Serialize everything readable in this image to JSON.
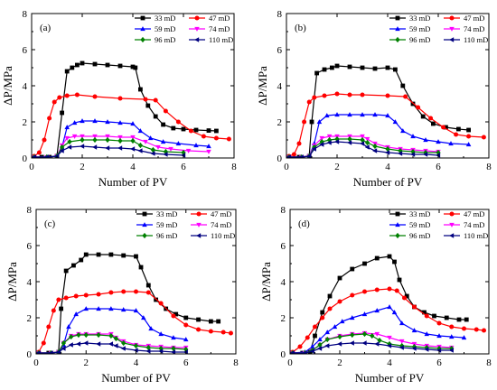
{
  "figure": {
    "colors": {
      "33 mD": "#000000",
      "47 mD": "#ff0000",
      "59 mD": "#0000ff",
      "74 mD": "#ff00ff",
      "96 mD": "#008000",
      "110 mD": "#000080"
    },
    "markers": {
      "33 mD": "square",
      "47 mD": "circle",
      "59 mD": "triangle-up",
      "74 mD": "triangle-down",
      "96 mD": "diamond",
      "110 mD": "triangle-left"
    }
  },
  "chart_data": [
    {
      "type": "line",
      "panel_label": "(a)",
      "xlabel": "Number of PV",
      "ylabel": "ΔP/MPa",
      "xlim": [
        0,
        8
      ],
      "ylim": [
        0,
        8
      ],
      "xticks": [
        "0",
        "2",
        "4",
        "6",
        "8"
      ],
      "yticks": [
        "0",
        "2",
        "4",
        "6",
        "8"
      ],
      "legend_placement": "top-right",
      "series": [
        {
          "name": "33 mD",
          "x": [
            0.1,
            0.4,
            0.7,
            1.0,
            1.2,
            1.4,
            1.6,
            1.8,
            2.0,
            2.5,
            3.0,
            3.5,
            4.0,
            4.1,
            4.3,
            4.6,
            4.9,
            5.2,
            5.6,
            6.0,
            6.5,
            7.0,
            7.3
          ],
          "y": [
            0.05,
            0.05,
            0.05,
            0.1,
            2.5,
            4.8,
            5.0,
            5.15,
            5.25,
            5.2,
            5.15,
            5.1,
            5.05,
            5.0,
            3.8,
            2.9,
            2.3,
            1.85,
            1.65,
            1.6,
            1.55,
            1.52,
            1.5
          ]
        },
        {
          "name": "47 mD",
          "x": [
            0.1,
            0.3,
            0.5,
            0.7,
            0.9,
            1.1,
            1.4,
            1.8,
            2.5,
            3.5,
            4.5,
            4.9,
            5.3,
            5.8,
            6.3,
            6.8,
            7.3,
            7.8
          ],
          "y": [
            0.1,
            0.3,
            1.0,
            2.2,
            3.1,
            3.35,
            3.45,
            3.5,
            3.4,
            3.3,
            3.25,
            3.2,
            2.6,
            2.0,
            1.5,
            1.2,
            1.1,
            1.05
          ]
        },
        {
          "name": "59 mD",
          "x": [
            0.1,
            0.6,
            1.0,
            1.2,
            1.4,
            1.7,
            2.0,
            2.5,
            3.0,
            3.5,
            4.0,
            4.3,
            4.7,
            5.2,
            5.8,
            6.5,
            7.0
          ],
          "y": [
            0.05,
            0.05,
            0.1,
            0.6,
            1.7,
            1.95,
            2.05,
            2.05,
            2.0,
            1.95,
            1.9,
            1.5,
            1.1,
            0.9,
            0.8,
            0.7,
            0.65
          ]
        },
        {
          "name": "74 mD",
          "x": [
            0.1,
            0.6,
            1.0,
            1.2,
            1.4,
            1.7,
            2.0,
            2.5,
            3.0,
            3.5,
            4.0,
            4.5,
            5.0,
            5.5,
            6.2,
            7.0
          ],
          "y": [
            0.05,
            0.05,
            0.1,
            0.7,
            1.1,
            1.2,
            1.2,
            1.2,
            1.2,
            1.15,
            1.15,
            0.9,
            0.6,
            0.5,
            0.4,
            0.35
          ]
        },
        {
          "name": "96 mD",
          "x": [
            0.1,
            0.6,
            1.0,
            1.2,
            1.5,
            2.0,
            2.5,
            3.0,
            3.5,
            4.0,
            4.3,
            4.8,
            5.3,
            6.0
          ],
          "y": [
            0.05,
            0.05,
            0.1,
            0.6,
            0.9,
            1.0,
            1.0,
            1.0,
            0.95,
            0.95,
            0.7,
            0.45,
            0.35,
            0.3
          ]
        },
        {
          "name": "110 mD",
          "x": [
            0.1,
            0.6,
            1.0,
            1.2,
            1.5,
            2.0,
            2.5,
            3.0,
            3.5,
            4.0,
            4.3,
            4.8,
            5.3,
            6.0
          ],
          "y": [
            0.05,
            0.05,
            0.1,
            0.4,
            0.6,
            0.65,
            0.6,
            0.55,
            0.55,
            0.5,
            0.4,
            0.25,
            0.2,
            0.15
          ]
        }
      ]
    },
    {
      "type": "line",
      "panel_label": "(b)",
      "xlabel": "Number of PV",
      "ylabel": "ΔP/MPa",
      "xlim": [
        0,
        8
      ],
      "ylim": [
        0,
        8
      ],
      "xticks": [
        "0",
        "2",
        "4",
        "6",
        "8"
      ],
      "yticks": [
        "0",
        "2",
        "4",
        "6",
        "8"
      ],
      "legend_placement": "top-right",
      "series": [
        {
          "name": "33 mD",
          "x": [
            0.1,
            0.5,
            0.9,
            1.0,
            1.2,
            1.5,
            1.8,
            2.0,
            2.5,
            3.0,
            3.5,
            4.0,
            4.3,
            4.6,
            5.0,
            5.4,
            5.8,
            6.3,
            6.8,
            7.2
          ],
          "y": [
            0.05,
            0.05,
            0.1,
            2.0,
            4.7,
            4.9,
            5.0,
            5.1,
            5.05,
            5.0,
            4.95,
            5.0,
            4.9,
            4.0,
            3.0,
            2.3,
            1.9,
            1.7,
            1.6,
            1.55
          ]
        },
        {
          "name": "47 mD",
          "x": [
            0.1,
            0.3,
            0.5,
            0.7,
            0.9,
            1.1,
            1.5,
            2.0,
            2.5,
            3.0,
            4.0,
            4.7,
            5.2,
            5.7,
            6.2,
            6.7,
            7.2,
            7.8
          ],
          "y": [
            0.1,
            0.2,
            0.8,
            2.0,
            3.1,
            3.35,
            3.45,
            3.55,
            3.5,
            3.5,
            3.45,
            3.4,
            2.8,
            2.2,
            1.7,
            1.3,
            1.2,
            1.15
          ]
        },
        {
          "name": "59 mD",
          "x": [
            0.1,
            0.6,
            0.9,
            1.1,
            1.3,
            1.6,
            2.0,
            2.5,
            3.0,
            3.5,
            4.0,
            4.3,
            4.6,
            5.0,
            5.5,
            6.0,
            6.5,
            7.2
          ],
          "y": [
            0.05,
            0.05,
            0.1,
            0.8,
            2.0,
            2.35,
            2.4,
            2.4,
            2.4,
            2.4,
            2.35,
            2.0,
            1.5,
            1.2,
            1.0,
            0.9,
            0.8,
            0.75
          ]
        },
        {
          "name": "74 mD",
          "x": [
            0.1,
            0.6,
            0.9,
            1.1,
            1.4,
            1.7,
            2.0,
            2.5,
            3.0,
            3.2,
            3.5,
            4.0,
            4.5,
            5.0,
            5.5,
            6.0
          ],
          "y": [
            0.05,
            0.05,
            0.1,
            0.7,
            1.1,
            1.2,
            1.2,
            1.2,
            1.2,
            1.05,
            0.8,
            0.6,
            0.5,
            0.45,
            0.4,
            0.35
          ]
        },
        {
          "name": "96 mD",
          "x": [
            0.1,
            0.6,
            0.9,
            1.1,
            1.4,
            1.7,
            2.0,
            2.5,
            3.0,
            3.2,
            3.5,
            4.0,
            4.5,
            5.0,
            5.5,
            6.0
          ],
          "y": [
            0.05,
            0.05,
            0.1,
            0.6,
            0.9,
            1.0,
            1.05,
            1.05,
            1.0,
            0.85,
            0.65,
            0.5,
            0.4,
            0.35,
            0.3,
            0.3
          ]
        },
        {
          "name": "110 mD",
          "x": [
            0.1,
            0.6,
            0.9,
            1.1,
            1.4,
            1.7,
            2.0,
            2.5,
            3.0,
            3.2,
            3.5,
            4.0,
            4.5,
            5.0,
            5.5,
            6.0
          ],
          "y": [
            0.05,
            0.05,
            0.1,
            0.5,
            0.75,
            0.85,
            0.9,
            0.85,
            0.8,
            0.6,
            0.4,
            0.3,
            0.25,
            0.2,
            0.2,
            0.15
          ]
        }
      ]
    },
    {
      "type": "line",
      "panel_label": "(c)",
      "xlabel": "Number of PV",
      "ylabel": "ΔP/MPa",
      "xlim": [
        0,
        8
      ],
      "ylim": [
        0,
        8
      ],
      "xticks": [
        "0",
        "2",
        "4",
        "6",
        "8"
      ],
      "yticks": [
        "0",
        "2",
        "4",
        "6",
        "8"
      ],
      "legend_placement": "top-right",
      "series": [
        {
          "name": "33 mD",
          "x": [
            0.1,
            0.5,
            0.9,
            1.0,
            1.2,
            1.5,
            1.8,
            2.0,
            2.5,
            3.0,
            3.5,
            4.0,
            4.2,
            4.5,
            4.8,
            5.2,
            5.6,
            6.0,
            6.5,
            7.0,
            7.3
          ],
          "y": [
            0.05,
            0.05,
            0.1,
            2.5,
            4.6,
            4.9,
            5.2,
            5.5,
            5.5,
            5.5,
            5.45,
            5.4,
            4.8,
            3.8,
            3.0,
            2.5,
            2.2,
            2.0,
            1.9,
            1.8,
            1.8
          ]
        },
        {
          "name": "47 mD",
          "x": [
            0.1,
            0.3,
            0.5,
            0.7,
            0.9,
            1.2,
            1.6,
            2.0,
            2.5,
            3.0,
            3.5,
            4.0,
            4.5,
            5.0,
            5.5,
            6.0,
            6.5,
            7.0,
            7.5,
            7.8
          ],
          "y": [
            0.1,
            0.6,
            1.5,
            2.4,
            3.0,
            3.1,
            3.2,
            3.25,
            3.3,
            3.4,
            3.45,
            3.45,
            3.4,
            2.8,
            2.1,
            1.6,
            1.35,
            1.25,
            1.2,
            1.15
          ]
        },
        {
          "name": "59 mD",
          "x": [
            0.1,
            0.6,
            0.9,
            1.1,
            1.3,
            1.6,
            2.0,
            2.5,
            3.0,
            3.5,
            4.0,
            4.3,
            4.6,
            5.0,
            5.5,
            6.0
          ],
          "y": [
            0.05,
            0.05,
            0.1,
            0.5,
            1.5,
            2.2,
            2.5,
            2.5,
            2.5,
            2.45,
            2.4,
            2.0,
            1.4,
            1.1,
            0.9,
            0.8
          ]
        },
        {
          "name": "74 mD",
          "x": [
            0.1,
            0.6,
            0.9,
            1.1,
            1.4,
            1.7,
            2.0,
            2.5,
            3.0,
            3.2,
            3.5,
            4.0,
            4.5,
            5.0,
            5.5,
            6.0
          ],
          "y": [
            0.05,
            0.05,
            0.1,
            0.6,
            1.0,
            1.1,
            1.1,
            1.1,
            1.1,
            0.9,
            0.7,
            0.5,
            0.45,
            0.4,
            0.35,
            0.35
          ]
        },
        {
          "name": "96 mD",
          "x": [
            0.1,
            0.6,
            0.9,
            1.1,
            1.4,
            1.7,
            2.0,
            2.5,
            3.0,
            3.2,
            3.5,
            4.0,
            4.5,
            5.0,
            5.5,
            6.0
          ],
          "y": [
            0.05,
            0.05,
            0.1,
            0.6,
            0.95,
            1.05,
            1.05,
            1.05,
            1.0,
            0.85,
            0.6,
            0.45,
            0.35,
            0.3,
            0.3,
            0.25
          ]
        },
        {
          "name": "110 mD",
          "x": [
            0.1,
            0.6,
            0.9,
            1.1,
            1.4,
            1.7,
            2.0,
            2.5,
            3.0,
            3.2,
            3.5,
            4.0,
            4.5,
            5.0,
            5.5,
            6.0
          ],
          "y": [
            0.05,
            0.05,
            0.1,
            0.3,
            0.5,
            0.55,
            0.6,
            0.55,
            0.55,
            0.45,
            0.3,
            0.2,
            0.15,
            0.15,
            0.1,
            0.1
          ]
        }
      ]
    },
    {
      "type": "line",
      "panel_label": "(d)",
      "xlabel": "Number of PV",
      "ylabel": "ΔP/MPa",
      "xlim": [
        0,
        8
      ],
      "ylim": [
        0,
        8
      ],
      "xticks": [
        "0",
        "2",
        "4",
        "6",
        "8"
      ],
      "yticks": [
        "0",
        "2",
        "4",
        "6",
        "8"
      ],
      "legend_placement": "top-right",
      "series": [
        {
          "name": "33 mD",
          "x": [
            0.1,
            0.5,
            0.8,
            1.0,
            1.3,
            1.6,
            2.0,
            2.5,
            3.0,
            3.5,
            4.0,
            4.2,
            4.4,
            4.7,
            5.0,
            5.4,
            5.8,
            6.3,
            6.8,
            7.1
          ],
          "y": [
            0.05,
            0.05,
            0.1,
            1.0,
            2.3,
            3.2,
            4.2,
            4.7,
            5.0,
            5.3,
            5.4,
            5.1,
            4.1,
            3.2,
            2.6,
            2.3,
            2.1,
            2.0,
            1.9,
            1.9
          ]
        },
        {
          "name": "47 mD",
          "x": [
            0.1,
            0.4,
            0.7,
            1.0,
            1.3,
            1.6,
            2.0,
            2.5,
            3.0,
            3.5,
            4.0,
            4.3,
            4.6,
            5.0,
            5.5,
            6.0,
            6.5,
            7.0,
            7.5,
            7.8
          ],
          "y": [
            0.1,
            0.4,
            0.9,
            1.5,
            2.0,
            2.5,
            2.9,
            3.25,
            3.45,
            3.55,
            3.6,
            3.5,
            3.1,
            2.6,
            2.1,
            1.7,
            1.5,
            1.4,
            1.35,
            1.3
          ]
        },
        {
          "name": "59 mD",
          "x": [
            0.1,
            0.6,
            0.9,
            1.2,
            1.5,
            1.8,
            2.1,
            2.5,
            3.0,
            3.5,
            4.0,
            4.2,
            4.5,
            5.0,
            5.5,
            6.0,
            6.5,
            7.0
          ],
          "y": [
            0.05,
            0.1,
            0.4,
            0.8,
            1.2,
            1.5,
            1.8,
            2.0,
            2.2,
            2.4,
            2.6,
            2.3,
            1.7,
            1.3,
            1.1,
            1.0,
            0.95,
            0.9
          ]
        },
        {
          "name": "74 mD",
          "x": [
            0.1,
            0.6,
            0.9,
            1.2,
            1.5,
            2.0,
            2.5,
            3.0,
            3.5,
            4.0,
            4.5,
            5.0,
            5.5,
            6.0,
            6.5
          ],
          "y": [
            0.05,
            0.05,
            0.2,
            0.5,
            0.8,
            1.0,
            1.1,
            1.15,
            1.1,
            0.9,
            0.7,
            0.55,
            0.45,
            0.4,
            0.35
          ]
        },
        {
          "name": "96 mD",
          "x": [
            0.1,
            0.6,
            0.9,
            1.2,
            1.5,
            2.0,
            2.5,
            3.0,
            3.3,
            3.6,
            4.0,
            4.5,
            5.0,
            5.5,
            6.0,
            6.5
          ],
          "y": [
            0.05,
            0.05,
            0.2,
            0.5,
            0.8,
            0.95,
            1.05,
            1.1,
            1.0,
            0.75,
            0.55,
            0.45,
            0.4,
            0.35,
            0.3,
            0.3
          ]
        },
        {
          "name": "110 mD",
          "x": [
            0.1,
            0.6,
            0.9,
            1.2,
            1.5,
            2.0,
            2.5,
            3.0,
            3.5,
            4.0,
            4.5,
            5.0,
            5.5,
            6.0,
            6.5
          ],
          "y": [
            0.05,
            0.05,
            0.15,
            0.3,
            0.45,
            0.55,
            0.6,
            0.6,
            0.55,
            0.45,
            0.35,
            0.3,
            0.25,
            0.2,
            0.2
          ]
        }
      ]
    }
  ]
}
